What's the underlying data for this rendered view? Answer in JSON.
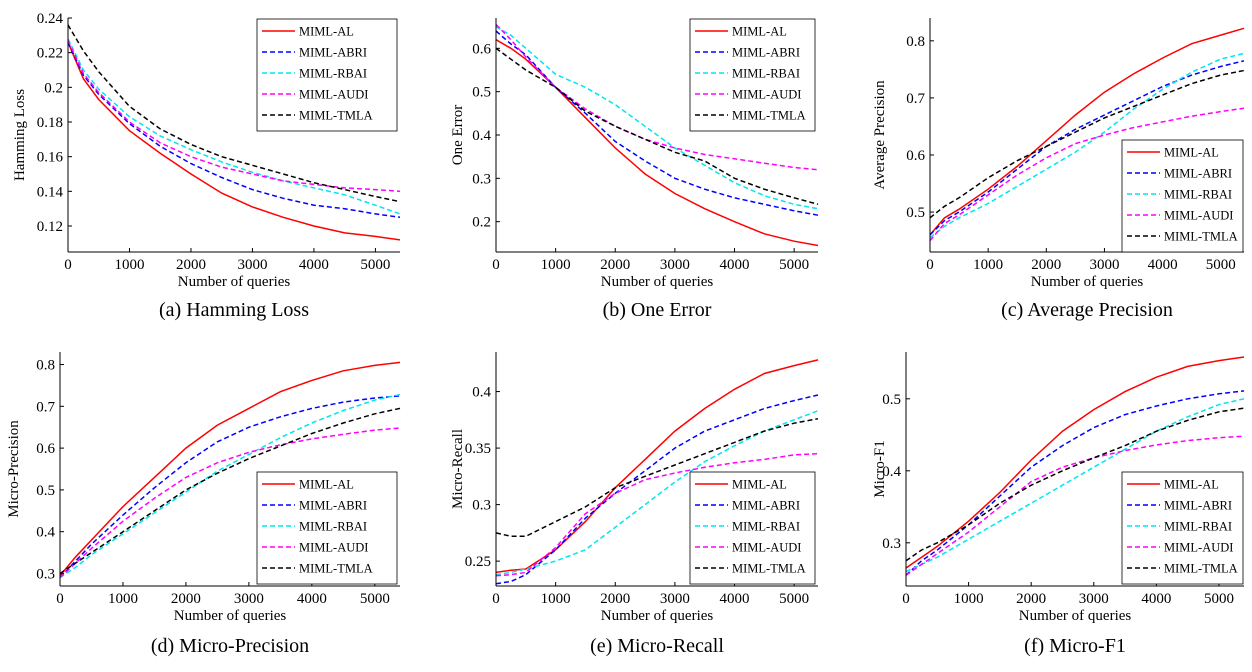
{
  "chart_data": [
    {
      "type": "line",
      "caption": "(a) Hamming Loss",
      "xlabel": "Number of queries",
      "ylabel": "Hamming Loss",
      "xlim": [
        0,
        5400
      ],
      "ylim": [
        0.105,
        0.24
      ],
      "xticks": [
        0,
        1000,
        2000,
        3000,
        4000,
        5000
      ],
      "yticks": [
        0.12,
        0.14,
        0.16,
        0.18,
        0.2,
        0.22,
        0.24
      ],
      "yticklabels": [
        "0.12",
        "0.14",
        "0.16",
        "0.18",
        "0.2",
        "0.22",
        "0.24"
      ],
      "legend": "top-right",
      "x": [
        0,
        250,
        500,
        1000,
        1500,
        2000,
        2500,
        3000,
        3500,
        4000,
        4500,
        5000,
        5400
      ],
      "series": [
        {
          "name": "MIML-AL",
          "values": [
            0.226,
            0.205,
            0.193,
            0.175,
            0.162,
            0.15,
            0.139,
            0.131,
            0.125,
            0.12,
            0.116,
            0.114,
            0.112
          ]
        },
        {
          "name": "MIML-ABRI",
          "values": [
            0.226,
            0.207,
            0.196,
            0.179,
            0.166,
            0.156,
            0.148,
            0.141,
            0.136,
            0.132,
            0.13,
            0.127,
            0.125
          ]
        },
        {
          "name": "MIML-RBAI",
          "values": [
            0.228,
            0.21,
            0.199,
            0.183,
            0.172,
            0.164,
            0.157,
            0.151,
            0.146,
            0.142,
            0.138,
            0.132,
            0.127
          ]
        },
        {
          "name": "MIML-AUDI",
          "values": [
            0.227,
            0.208,
            0.197,
            0.18,
            0.168,
            0.16,
            0.154,
            0.15,
            0.146,
            0.144,
            0.142,
            0.141,
            0.14
          ]
        },
        {
          "name": "MIML-TMLA",
          "values": [
            0.236,
            0.221,
            0.209,
            0.189,
            0.176,
            0.167,
            0.16,
            0.155,
            0.15,
            0.145,
            0.141,
            0.137,
            0.134
          ]
        }
      ]
    },
    {
      "type": "line",
      "caption": "(b) One Error",
      "xlabel": "Number of queries",
      "ylabel": "One Error",
      "xlim": [
        0,
        5400
      ],
      "ylim": [
        0.13,
        0.67
      ],
      "xticks": [
        0,
        1000,
        2000,
        3000,
        4000,
        5000
      ],
      "yticks": [
        0.2,
        0.3,
        0.4,
        0.5,
        0.6
      ],
      "yticklabels": [
        "0.2",
        "0.3",
        "0.4",
        "0.5",
        "0.6"
      ],
      "legend": "top-right",
      "x": [
        0,
        250,
        500,
        1000,
        1500,
        2000,
        2500,
        3000,
        3500,
        4000,
        4500,
        5000,
        5400
      ],
      "series": [
        {
          "name": "MIML-AL",
          "values": [
            0.62,
            0.6,
            0.575,
            0.51,
            0.44,
            0.37,
            0.31,
            0.265,
            0.23,
            0.2,
            0.172,
            0.155,
            0.145
          ]
        },
        {
          "name": "MIML-ABRI",
          "values": [
            0.64,
            0.61,
            0.585,
            0.51,
            0.45,
            0.385,
            0.34,
            0.3,
            0.275,
            0.255,
            0.24,
            0.225,
            0.215
          ]
        },
        {
          "name": "MIML-RBAI",
          "values": [
            0.65,
            0.63,
            0.6,
            0.54,
            0.51,
            0.47,
            0.42,
            0.37,
            0.33,
            0.29,
            0.26,
            0.24,
            0.23
          ]
        },
        {
          "name": "MIML-AUDI",
          "values": [
            0.655,
            0.62,
            0.58,
            0.51,
            0.46,
            0.42,
            0.39,
            0.37,
            0.355,
            0.345,
            0.335,
            0.325,
            0.32
          ]
        },
        {
          "name": "MIML-TMLA",
          "values": [
            0.6,
            0.575,
            0.55,
            0.51,
            0.455,
            0.42,
            0.39,
            0.36,
            0.34,
            0.3,
            0.275,
            0.255,
            0.24
          ]
        }
      ]
    },
    {
      "type": "line",
      "caption": "(c) Average Precision",
      "xlabel": "Number of queries",
      "ylabel": "Average Precision",
      "xlim": [
        0,
        5400
      ],
      "ylim": [
        0.43,
        0.84
      ],
      "xticks": [
        0,
        1000,
        2000,
        3000,
        4000,
        5000
      ],
      "yticks": [
        0.5,
        0.6,
        0.7,
        0.8
      ],
      "yticklabels": [
        "0.5",
        "0.6",
        "0.7",
        "0.8"
      ],
      "legend": "bottom-right",
      "x": [
        0,
        250,
        500,
        1000,
        1500,
        2000,
        2500,
        3000,
        3500,
        4000,
        4500,
        5000,
        5400
      ],
      "series": [
        {
          "name": "MIML-AL",
          "values": [
            0.46,
            0.49,
            0.505,
            0.54,
            0.58,
            0.625,
            0.67,
            0.71,
            0.742,
            0.77,
            0.795,
            0.81,
            0.822
          ]
        },
        {
          "name": "MIML-ABRI",
          "values": [
            0.46,
            0.485,
            0.5,
            0.535,
            0.575,
            0.615,
            0.645,
            0.67,
            0.695,
            0.72,
            0.74,
            0.755,
            0.765
          ]
        },
        {
          "name": "MIML-RBAI",
          "values": [
            0.455,
            0.475,
            0.49,
            0.515,
            0.545,
            0.575,
            0.605,
            0.64,
            0.68,
            0.715,
            0.745,
            0.768,
            0.778
          ]
        },
        {
          "name": "MIML-AUDI",
          "values": [
            0.45,
            0.48,
            0.495,
            0.53,
            0.565,
            0.595,
            0.62,
            0.635,
            0.648,
            0.658,
            0.668,
            0.676,
            0.682
          ]
        },
        {
          "name": "MIML-TMLA",
          "values": [
            0.49,
            0.51,
            0.525,
            0.56,
            0.59,
            0.615,
            0.64,
            0.665,
            0.685,
            0.705,
            0.725,
            0.74,
            0.748
          ]
        }
      ]
    },
    {
      "type": "line",
      "caption": "(d) Micro-Precision",
      "xlabel": "Number of queries",
      "ylabel": "Micro-Precision",
      "xlim": [
        0,
        5400
      ],
      "ylim": [
        0.27,
        0.83
      ],
      "xticks": [
        0,
        1000,
        2000,
        3000,
        4000,
        5000
      ],
      "yticks": [
        0.3,
        0.4,
        0.5,
        0.6,
        0.7,
        0.8
      ],
      "yticklabels": [
        "0.3",
        "0.4",
        "0.5",
        "0.6",
        "0.7",
        "0.8"
      ],
      "legend": "bottom-right",
      "x": [
        0,
        250,
        500,
        1000,
        1500,
        2000,
        2500,
        3000,
        3500,
        4000,
        4500,
        5000,
        5400
      ],
      "series": [
        {
          "name": "MIML-AL",
          "values": [
            0.295,
            0.34,
            0.38,
            0.46,
            0.53,
            0.6,
            0.655,
            0.695,
            0.735,
            0.762,
            0.785,
            0.798,
            0.805
          ]
        },
        {
          "name": "MIML-ABRI",
          "values": [
            0.29,
            0.33,
            0.37,
            0.44,
            0.505,
            0.565,
            0.615,
            0.65,
            0.675,
            0.695,
            0.71,
            0.72,
            0.725
          ]
        },
        {
          "name": "MIML-RBAI",
          "values": [
            0.29,
            0.315,
            0.345,
            0.395,
            0.445,
            0.495,
            0.545,
            0.585,
            0.625,
            0.66,
            0.69,
            0.715,
            0.728
          ]
        },
        {
          "name": "MIML-AUDI",
          "values": [
            0.29,
            0.325,
            0.36,
            0.425,
            0.48,
            0.53,
            0.565,
            0.59,
            0.608,
            0.622,
            0.633,
            0.643,
            0.648
          ]
        },
        {
          "name": "MIML-TMLA",
          "values": [
            0.3,
            0.325,
            0.35,
            0.4,
            0.45,
            0.5,
            0.54,
            0.575,
            0.605,
            0.635,
            0.66,
            0.682,
            0.695
          ]
        }
      ]
    },
    {
      "type": "line",
      "caption": "(e) Micro-Recall",
      "xlabel": "Number of queries",
      "ylabel": "Micro-Recall",
      "xlim": [
        0,
        5400
      ],
      "ylim": [
        0.228,
        0.435
      ],
      "xticks": [
        0,
        1000,
        2000,
        3000,
        4000,
        5000
      ],
      "yticks": [
        0.25,
        0.3,
        0.35,
        0.4
      ],
      "yticklabels": [
        "0.25",
        "0.3",
        "0.35",
        "0.4"
      ],
      "legend": "bottom-right",
      "x": [
        0,
        250,
        500,
        1000,
        1500,
        2000,
        2500,
        3000,
        3500,
        4000,
        4500,
        5000,
        5400
      ],
      "series": [
        {
          "name": "MIML-AL",
          "values": [
            0.24,
            0.242,
            0.243,
            0.26,
            0.285,
            0.315,
            0.34,
            0.365,
            0.385,
            0.402,
            0.416,
            0.423,
            0.428
          ]
        },
        {
          "name": "MIML-ABRI",
          "values": [
            0.23,
            0.232,
            0.238,
            0.26,
            0.288,
            0.31,
            0.33,
            0.35,
            0.365,
            0.375,
            0.385,
            0.392,
            0.397
          ]
        },
        {
          "name": "MIML-RBAI",
          "values": [
            0.238,
            0.24,
            0.243,
            0.25,
            0.26,
            0.28,
            0.3,
            0.32,
            0.338,
            0.352,
            0.365,
            0.375,
            0.383
          ]
        },
        {
          "name": "MIML-AUDI",
          "values": [
            0.237,
            0.238,
            0.24,
            0.262,
            0.292,
            0.31,
            0.322,
            0.328,
            0.333,
            0.337,
            0.34,
            0.344,
            0.345
          ]
        },
        {
          "name": "MIML-TMLA",
          "values": [
            0.275,
            0.272,
            0.272,
            0.285,
            0.298,
            0.315,
            0.325,
            0.335,
            0.345,
            0.355,
            0.365,
            0.372,
            0.376
          ]
        }
      ]
    },
    {
      "type": "line",
      "caption": "(f) Micro-F1",
      "xlabel": "Number of queries",
      "ylabel": "Micro-F1",
      "xlim": [
        0,
        5400
      ],
      "ylim": [
        0.24,
        0.565
      ],
      "xticks": [
        0,
        1000,
        2000,
        3000,
        4000,
        5000
      ],
      "yticks": [
        0.3,
        0.4,
        0.5
      ],
      "yticklabels": [
        "0.3",
        "0.4",
        "0.5"
      ],
      "legend": "bottom-right",
      "x": [
        0,
        250,
        500,
        1000,
        1500,
        2000,
        2500,
        3000,
        3500,
        4000,
        4500,
        5000,
        5400
      ],
      "series": [
        {
          "name": "MIML-AL",
          "values": [
            0.265,
            0.28,
            0.295,
            0.33,
            0.37,
            0.415,
            0.455,
            0.485,
            0.51,
            0.53,
            0.545,
            0.553,
            0.558
          ]
        },
        {
          "name": "MIML-ABRI",
          "values": [
            0.255,
            0.275,
            0.29,
            0.325,
            0.365,
            0.405,
            0.435,
            0.46,
            0.478,
            0.49,
            0.5,
            0.507,
            0.511
          ]
        },
        {
          "name": "MIML-RBAI",
          "values": [
            0.26,
            0.27,
            0.28,
            0.305,
            0.33,
            0.355,
            0.38,
            0.405,
            0.43,
            0.455,
            0.475,
            0.492,
            0.5
          ]
        },
        {
          "name": "MIML-AUDI",
          "values": [
            0.255,
            0.27,
            0.285,
            0.315,
            0.35,
            0.385,
            0.405,
            0.418,
            0.428,
            0.436,
            0.442,
            0.446,
            0.448
          ]
        },
        {
          "name": "MIML-TMLA",
          "values": [
            0.275,
            0.29,
            0.3,
            0.325,
            0.355,
            0.38,
            0.4,
            0.418,
            0.435,
            0.455,
            0.47,
            0.482,
            0.487
          ]
        }
      ]
    }
  ],
  "series_styles": [
    {
      "name": "MIML-AL",
      "color": "#ff0000",
      "dash": "solid"
    },
    {
      "name": "MIML-ABRI",
      "color": "#0000ff",
      "dash": "dashed"
    },
    {
      "name": "MIML-RBAI",
      "color": "#00e5ee",
      "dash": "dashed"
    },
    {
      "name": "MIML-AUDI",
      "color": "#ff00ff",
      "dash": "dashed"
    },
    {
      "name": "MIML-TMLA",
      "color": "#000000",
      "dash": "dashed"
    }
  ]
}
